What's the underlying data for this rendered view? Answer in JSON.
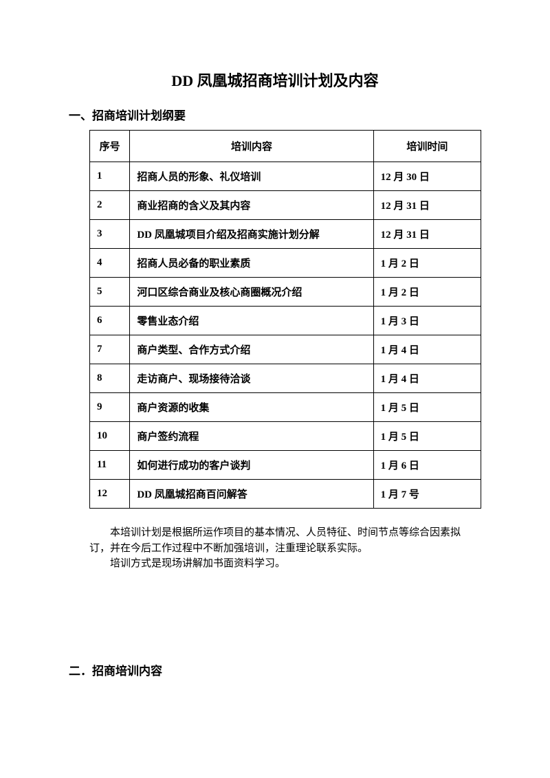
{
  "title": "DD 凤凰城招商培训计划及内容",
  "section1_heading": "一、招商培训计划纲要",
  "table": {
    "headers": {
      "seq": "序号",
      "content": "培训内容",
      "time": "培训时间"
    },
    "rows": [
      {
        "seq": "1",
        "content": "招商人员的形象、礼仪培训",
        "time": "12 月 30 日"
      },
      {
        "seq": "2",
        "content": "商业招商的含义及其内容",
        "time": "12 月 31 日"
      },
      {
        "seq": "3",
        "content": "DD 凤凰城项目介绍及招商实施计划分解",
        "time": "12 月 31 日"
      },
      {
        "seq": "4",
        "content": "招商人员必备的职业素质",
        "time": "1 月 2 日"
      },
      {
        "seq": "5",
        "content": "河口区综合商业及核心商圈概况介绍",
        "time": "1 月 2 日"
      },
      {
        "seq": "6",
        "content": "零售业态介绍",
        "time": "1 月 3 日"
      },
      {
        "seq": "7",
        "content": "商户类型、合作方式介绍",
        "time": "1 月 4 日"
      },
      {
        "seq": "8",
        "content": "走访商户、现场接待洽谈",
        "time": "1 月 4 日"
      },
      {
        "seq": "9",
        "content": "商户资源的收集",
        "time": "1 月 5 日"
      },
      {
        "seq": "10",
        "content": "商户签约流程",
        "time": "1 月 5 日"
      },
      {
        "seq": "11",
        "content": "如何进行成功的客户谈判",
        "time": "1 月 6 日"
      },
      {
        "seq": "12",
        "content": "DD 凤凰城招商百问解答",
        "time": "1 月 7 号"
      }
    ]
  },
  "paragraph1": "本培训计划是根据所运作项目的基本情况、人员特征、时间节点等综合因素拟订，并在今后工作过程中不断加强培训，注重理论联系实际。",
  "paragraph2": "培训方式是现场讲解加书面资料学习。",
  "section2_heading": "二．招商培训内容"
}
